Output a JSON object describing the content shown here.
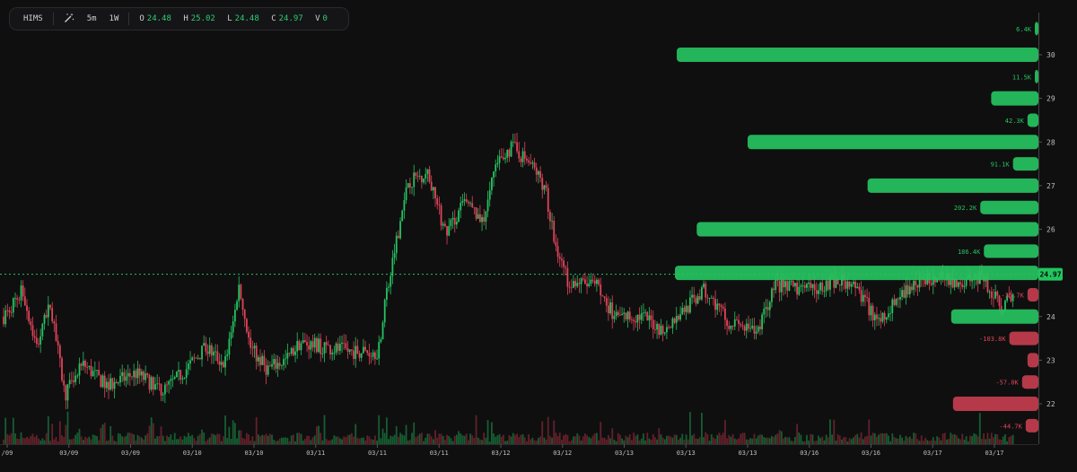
{
  "toolbar": {
    "symbol": "HIMS",
    "tool_icon": "magic-wand-icon",
    "interval": "5m",
    "range": "1W",
    "ohlc": {
      "o_label": "O",
      "o": "24.48",
      "h_label": "H",
      "h": "25.02",
      "l_label": "L",
      "l": "24.48",
      "c_label": "C",
      "c": "24.97",
      "v_label": "V",
      "v": "0"
    }
  },
  "colors": {
    "up": "#26c260",
    "down": "#e04458",
    "bg": "#0f0f10",
    "bar_up": "#1fbf5a",
    "bar_down": "#c9374b",
    "last_price": "#22c55e"
  },
  "chart_data": {
    "type": "candlestick",
    "title": "",
    "ylim": [
      21.2,
      31.8
    ],
    "y_ticks": [
      "22",
      "23",
      "24",
      "25",
      "26",
      "27",
      "28",
      "29",
      "30"
    ],
    "x_ticks": [
      "/09",
      "03/09",
      "03/09",
      "03/10",
      "03/10",
      "03/11",
      "03/11",
      "03/11",
      "03/12",
      "03/12",
      "03/13",
      "03/13",
      "03/13",
      "03/16",
      "03/16",
      "03/17",
      "03/17"
    ],
    "last_price": 24.97,
    "last_price_label": "24.97",
    "price_path": [
      {
        "t": 0.0,
        "p": 24.0
      },
      {
        "t": 0.02,
        "p": 24.6
      },
      {
        "t": 0.035,
        "p": 23.3
      },
      {
        "t": 0.05,
        "p": 24.3
      },
      {
        "t": 0.065,
        "p": 22.2
      },
      {
        "t": 0.085,
        "p": 22.9
      },
      {
        "t": 0.11,
        "p": 22.4
      },
      {
        "t": 0.14,
        "p": 22.7
      },
      {
        "t": 0.17,
        "p": 22.3
      },
      {
        "t": 0.19,
        "p": 22.7
      },
      {
        "t": 0.215,
        "p": 23.3
      },
      {
        "t": 0.235,
        "p": 22.9
      },
      {
        "t": 0.25,
        "p": 24.7
      },
      {
        "t": 0.262,
        "p": 23.3
      },
      {
        "t": 0.28,
        "p": 22.8
      },
      {
        "t": 0.3,
        "p": 23.0
      },
      {
        "t": 0.315,
        "p": 23.4
      },
      {
        "t": 0.34,
        "p": 23.3
      },
      {
        "t": 0.37,
        "p": 23.2
      },
      {
        "t": 0.398,
        "p": 23.2
      },
      {
        "t": 0.41,
        "p": 24.9
      },
      {
        "t": 0.43,
        "p": 27.1
      },
      {
        "t": 0.45,
        "p": 27.3
      },
      {
        "t": 0.47,
        "p": 25.9
      },
      {
        "t": 0.49,
        "p": 26.6
      },
      {
        "t": 0.51,
        "p": 26.2
      },
      {
        "t": 0.52,
        "p": 27.3
      },
      {
        "t": 0.54,
        "p": 27.9
      },
      {
        "t": 0.56,
        "p": 27.5
      },
      {
        "t": 0.575,
        "p": 27.0
      },
      {
        "t": 0.585,
        "p": 25.8
      },
      {
        "t": 0.6,
        "p": 24.8
      },
      {
        "t": 0.63,
        "p": 24.7
      },
      {
        "t": 0.65,
        "p": 24.0
      },
      {
        "t": 0.68,
        "p": 24.0
      },
      {
        "t": 0.7,
        "p": 23.7
      },
      {
        "t": 0.72,
        "p": 24.1
      },
      {
        "t": 0.745,
        "p": 24.6
      },
      {
        "t": 0.77,
        "p": 23.9
      },
      {
        "t": 0.8,
        "p": 23.6
      },
      {
        "t": 0.82,
        "p": 24.7
      },
      {
        "t": 0.86,
        "p": 24.6
      },
      {
        "t": 0.88,
        "p": 24.8
      },
      {
        "t": 0.9,
        "p": 24.8
      },
      {
        "t": 0.93,
        "p": 23.9
      },
      {
        "t": 0.96,
        "p": 24.6
      },
      {
        "t": 0.985,
        "p": 24.9
      },
      {
        "t": 1.02,
        "p": 24.8
      },
      {
        "t": 1.04,
        "p": 24.9
      },
      {
        "t": 1.06,
        "p": 24.2
      },
      {
        "t": 1.075,
        "p": 24.5
      }
    ],
    "volume_profile": [
      {
        "price": 30.6,
        "label": "6.4K",
        "side": "up",
        "value": 0.002
      },
      {
        "price": 30.0,
        "label": "",
        "side": "up",
        "value": 0.995
      },
      {
        "price": 29.5,
        "label": "11.5K",
        "side": "up",
        "value": 0.003
      },
      {
        "price": 29.0,
        "label": "",
        "side": "up",
        "value": 0.13
      },
      {
        "price": 28.5,
        "label": "42.3K",
        "side": "up",
        "value": 0.03
      },
      {
        "price": 28.0,
        "label": "",
        "side": "up",
        "value": 0.8
      },
      {
        "price": 27.5,
        "label": "91.1K",
        "side": "up",
        "value": 0.07
      },
      {
        "price": 27.0,
        "label": "",
        "side": "up",
        "value": 0.47
      },
      {
        "price": 26.5,
        "label": "202.2K",
        "side": "up",
        "value": 0.16
      },
      {
        "price": 26.0,
        "label": "",
        "side": "up",
        "value": 0.94
      },
      {
        "price": 25.5,
        "label": "186.4K",
        "side": "up",
        "value": 0.15
      },
      {
        "price": 25.0,
        "label": "",
        "side": "up",
        "value": 1.0
      },
      {
        "price": 24.5,
        "label": "-35.7K",
        "side": "down",
        "value": 0.03
      },
      {
        "price": 24.0,
        "label": "",
        "side": "up",
        "value": 0.24
      },
      {
        "price": 23.5,
        "label": "-103.8K",
        "side": "down",
        "value": 0.08
      },
      {
        "price": 23.0,
        "label": "",
        "side": "down",
        "value": 0.03
      },
      {
        "price": 22.5,
        "label": "-57.0K",
        "side": "down",
        "value": 0.045
      },
      {
        "price": 22.0,
        "label": "",
        "side": "down",
        "value": 0.235
      },
      {
        "price": 21.5,
        "label": "-44.7K",
        "side": "down",
        "value": 0.035
      }
    ]
  }
}
